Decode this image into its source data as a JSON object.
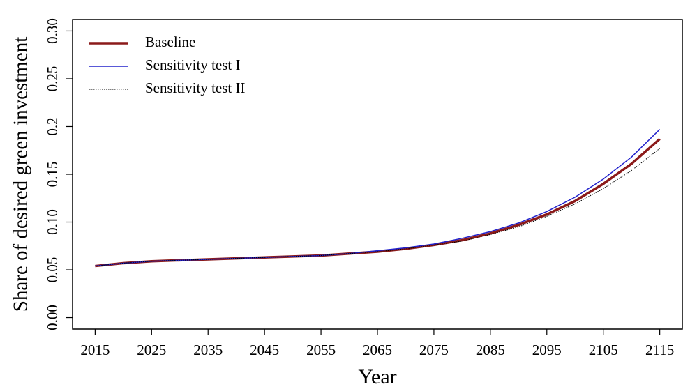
{
  "chart_data": {
    "type": "line",
    "x_label": "Year",
    "y_label": "Share of desired green investment",
    "x": [
      2015,
      2020,
      2025,
      2030,
      2035,
      2040,
      2045,
      2050,
      2055,
      2060,
      2065,
      2070,
      2075,
      2080,
      2085,
      2090,
      2095,
      2100,
      2105,
      2110,
      2115
    ],
    "series": [
      {
        "name": "Baseline",
        "color": "#8b1a1a",
        "line_style": "solid",
        "line_width": 3.5,
        "values": [
          0.054,
          0.057,
          0.059,
          0.06,
          0.061,
          0.062,
          0.063,
          0.064,
          0.065,
          0.067,
          0.069,
          0.072,
          0.076,
          0.081,
          0.088,
          0.097,
          0.108,
          0.122,
          0.14,
          0.161,
          0.187
        ]
      },
      {
        "name": "Sensitivity test I",
        "color": "#2222cc",
        "line_style": "solid",
        "line_width": 1.5,
        "values": [
          0.054,
          0.057,
          0.059,
          0.06,
          0.061,
          0.062,
          0.063,
          0.064,
          0.065,
          0.067,
          0.07,
          0.073,
          0.077,
          0.083,
          0.09,
          0.099,
          0.111,
          0.126,
          0.145,
          0.168,
          0.197
        ]
      },
      {
        "name": "Sensitivity test II",
        "color": "#000000",
        "line_style": "dotted",
        "line_width": 1,
        "values": [
          0.054,
          0.057,
          0.059,
          0.06,
          0.061,
          0.062,
          0.063,
          0.064,
          0.065,
          0.067,
          0.069,
          0.072,
          0.076,
          0.08,
          0.087,
          0.095,
          0.106,
          0.119,
          0.135,
          0.154,
          0.177
        ]
      }
    ],
    "xlim": [
      2011,
      2119
    ],
    "xticks": [
      2015,
      2025,
      2035,
      2045,
      2055,
      2065,
      2075,
      2085,
      2095,
      2105,
      2115
    ],
    "ylim": [
      -0.012,
      0.312
    ],
    "yticks": [
      {
        "value": 0,
        "label": "0.00"
      },
      {
        "value": 0.05,
        "label": "0.05"
      },
      {
        "value": 0.1,
        "label": "0.10"
      },
      {
        "value": 0.15,
        "label": "0.15"
      },
      {
        "value": 0.2,
        "label": "0.2"
      },
      {
        "value": 0.25,
        "label": "0.25"
      },
      {
        "value": 0.3,
        "label": "0.30"
      }
    ],
    "legend": "top-left",
    "grid": false
  }
}
